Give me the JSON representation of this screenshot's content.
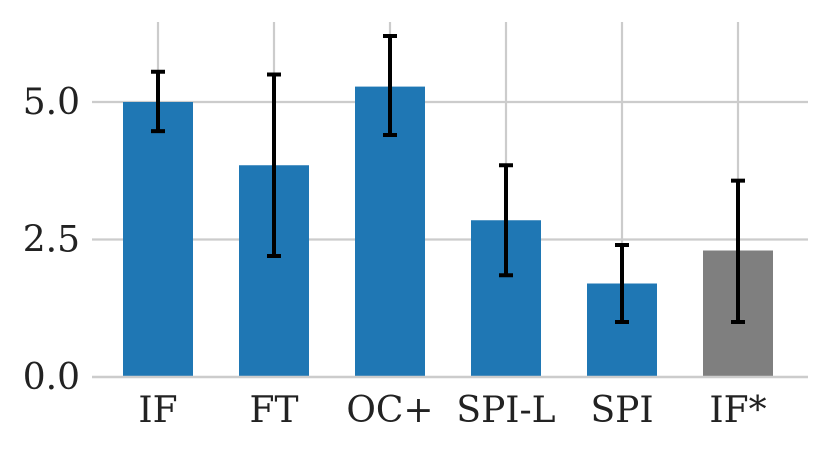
{
  "chart_data": {
    "type": "bar",
    "categories": [
      "IF",
      "FT",
      "OC+",
      "SPI-L",
      "SPI",
      "IF*"
    ],
    "values": [
      5.0,
      3.85,
      5.28,
      2.85,
      1.7,
      2.3
    ],
    "error_low": [
      4.47,
      2.2,
      4.4,
      1.85,
      1.0,
      1.0
    ],
    "error_high": [
      5.55,
      5.5,
      6.2,
      3.85,
      2.4,
      3.57
    ],
    "bar_colors": [
      "#1f77b4",
      "#1f77b4",
      "#1f77b4",
      "#1f77b4",
      "#1f77b4",
      "#7f7f7f"
    ],
    "error_color": "#000000",
    "ylim": [
      0,
      6.5
    ],
    "yticks": [
      "0.0",
      "2.5",
      "5.0"
    ],
    "ytick_values": [
      0,
      2.5,
      5.0
    ],
    "grid": true,
    "title": "",
    "xlabel": "",
    "ylabel": ""
  }
}
